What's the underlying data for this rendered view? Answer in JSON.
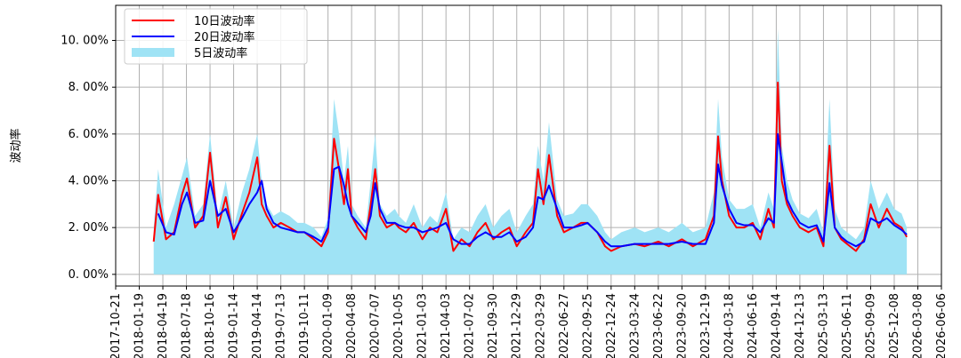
{
  "chart_data": {
    "type": "line",
    "title": "",
    "xlabel": "",
    "ylabel": "波动率",
    "ylim": [
      -0.005,
      0.115
    ],
    "grid": true,
    "legend_position": "top-left",
    "yticks": [
      0,
      0.02,
      0.04,
      0.06,
      0.08,
      0.1
    ],
    "ytick_labels": [
      "0. 00%",
      "2. 00%",
      "4. 00%",
      "6. 00%",
      "8. 00%",
      "10. 00%"
    ],
    "xticks": [
      "2017-10-21",
      "2018-01-19",
      "2018-04-19",
      "2018-07-18",
      "2018-10-16",
      "2019-01-14",
      "2019-04-14",
      "2019-07-13",
      "2019-10-11",
      "2020-01-09",
      "2020-04-08",
      "2020-07-07",
      "2020-10-05",
      "2021-01-03",
      "2021-04-03",
      "2021-07-02",
      "2021-09-30",
      "2021-12-29",
      "2022-03-29",
      "2022-06-27",
      "2022-09-25",
      "2022-12-24",
      "2023-03-24",
      "2023-06-22",
      "2023-09-20",
      "2023-12-19",
      "2024-03-18",
      "2024-06-16",
      "2024-09-14",
      "2024-12-13",
      "2025-03-13",
      "2025-06-11",
      "2025-09-09",
      "2025-12-08",
      "2026-03-08",
      "2026-06-06"
    ],
    "xlim": [
      "2017-10-21",
      "2026-06-06"
    ],
    "series": [
      {
        "name": "10日波动率",
        "color": "#ff0000",
        "kind": "line",
        "x": [
          "2018-03-15",
          "2018-04-01",
          "2018-05-01",
          "2018-06-01",
          "2018-07-01",
          "2018-07-20",
          "2018-08-20",
          "2018-09-20",
          "2018-10-16",
          "2018-11-15",
          "2018-12-15",
          "2019-01-14",
          "2019-02-15",
          "2019-03-15",
          "2019-04-14",
          "2019-05-01",
          "2019-05-20",
          "2019-06-15",
          "2019-07-13",
          "2019-08-15",
          "2019-09-15",
          "2019-10-11",
          "2019-11-15",
          "2019-12-15",
          "2020-01-09",
          "2020-02-01",
          "2020-02-20",
          "2020-03-10",
          "2020-03-25",
          "2020-04-08",
          "2020-05-01",
          "2020-06-01",
          "2020-06-20",
          "2020-07-07",
          "2020-07-25",
          "2020-08-20",
          "2020-09-20",
          "2020-10-05",
          "2020-11-01",
          "2020-12-01",
          "2021-01-03",
          "2021-02-01",
          "2021-03-01",
          "2021-04-03",
          "2021-05-01",
          "2021-06-01",
          "2021-07-02",
          "2021-08-01",
          "2021-09-01",
          "2021-09-30",
          "2021-11-01",
          "2021-12-01",
          "2021-12-29",
          "2022-02-01",
          "2022-03-01",
          "2022-03-20",
          "2022-04-10",
          "2022-05-01",
          "2022-06-01",
          "2022-06-27",
          "2022-08-01",
          "2022-09-01",
          "2022-09-25",
          "2022-11-01",
          "2022-12-01",
          "2022-12-24",
          "2023-02-01",
          "2023-03-24",
          "2023-05-01",
          "2023-06-22",
          "2023-08-01",
          "2023-09-20",
          "2023-11-01",
          "2023-12-19",
          "2024-01-20",
          "2024-02-05",
          "2024-02-20",
          "2024-03-18",
          "2024-04-15",
          "2024-05-15",
          "2024-06-16",
          "2024-07-15",
          "2024-08-15",
          "2024-09-05",
          "2024-09-20",
          "2024-10-05",
          "2024-10-25",
          "2024-11-15",
          "2024-12-13",
          "2025-01-15",
          "2025-02-15",
          "2025-03-13",
          "2025-04-05",
          "2025-04-25",
          "2025-05-20",
          "2025-06-11",
          "2025-07-15",
          "2025-08-15",
          "2025-09-09",
          "2025-10-10",
          "2025-11-10",
          "2025-12-08",
          "2026-01-05",
          "2026-01-25"
        ],
        "values": [
          0.014,
          0.034,
          0.015,
          0.018,
          0.034,
          0.041,
          0.02,
          0.025,
          0.052,
          0.02,
          0.033,
          0.015,
          0.026,
          0.035,
          0.05,
          0.03,
          0.025,
          0.02,
          0.022,
          0.02,
          0.018,
          0.018,
          0.015,
          0.012,
          0.018,
          0.058,
          0.045,
          0.03,
          0.045,
          0.025,
          0.02,
          0.015,
          0.03,
          0.045,
          0.025,
          0.02,
          0.022,
          0.02,
          0.018,
          0.022,
          0.015,
          0.02,
          0.018,
          0.028,
          0.01,
          0.015,
          0.012,
          0.018,
          0.022,
          0.015,
          0.018,
          0.02,
          0.012,
          0.018,
          0.022,
          0.045,
          0.03,
          0.051,
          0.025,
          0.018,
          0.02,
          0.022,
          0.022,
          0.018,
          0.012,
          0.01,
          0.012,
          0.013,
          0.012,
          0.014,
          0.012,
          0.015,
          0.012,
          0.015,
          0.025,
          0.059,
          0.04,
          0.025,
          0.02,
          0.02,
          0.022,
          0.015,
          0.028,
          0.02,
          0.082,
          0.04,
          0.03,
          0.025,
          0.02,
          0.018,
          0.02,
          0.012,
          0.055,
          0.02,
          0.015,
          0.013,
          0.01,
          0.015,
          0.03,
          0.02,
          0.028,
          0.022,
          0.02,
          0.016
        ]
      },
      {
        "name": "20日波动率",
        "color": "#0000ff",
        "kind": "line",
        "x": [
          "2018-04-01",
          "2018-05-01",
          "2018-06-01",
          "2018-07-01",
          "2018-07-20",
          "2018-08-20",
          "2018-09-20",
          "2018-10-16",
          "2018-11-15",
          "2018-12-15",
          "2019-01-14",
          "2019-02-15",
          "2019-03-15",
          "2019-04-14",
          "2019-05-01",
          "2019-05-20",
          "2019-06-15",
          "2019-07-13",
          "2019-08-15",
          "2019-09-15",
          "2019-10-11",
          "2019-11-15",
          "2019-12-15",
          "2020-01-09",
          "2020-02-01",
          "2020-02-20",
          "2020-03-10",
          "2020-03-25",
          "2020-04-08",
          "2020-05-01",
          "2020-06-01",
          "2020-06-20",
          "2020-07-07",
          "2020-07-25",
          "2020-08-20",
          "2020-09-20",
          "2020-10-05",
          "2020-11-01",
          "2020-12-01",
          "2021-01-03",
          "2021-02-01",
          "2021-03-01",
          "2021-04-03",
          "2021-05-01",
          "2021-06-01",
          "2021-07-02",
          "2021-08-01",
          "2021-09-01",
          "2021-09-30",
          "2021-11-01",
          "2021-12-01",
          "2021-12-29",
          "2022-02-01",
          "2022-03-01",
          "2022-03-20",
          "2022-04-10",
          "2022-05-01",
          "2022-06-01",
          "2022-06-27",
          "2022-08-01",
          "2022-09-01",
          "2022-09-25",
          "2022-11-01",
          "2022-12-01",
          "2022-12-24",
          "2023-02-01",
          "2023-03-24",
          "2023-05-01",
          "2023-06-22",
          "2023-08-01",
          "2023-09-20",
          "2023-11-01",
          "2023-12-19",
          "2024-01-20",
          "2024-02-05",
          "2024-02-20",
          "2024-03-18",
          "2024-04-15",
          "2024-05-15",
          "2024-06-16",
          "2024-07-15",
          "2024-08-15",
          "2024-09-05",
          "2024-09-20",
          "2024-10-05",
          "2024-10-25",
          "2024-11-15",
          "2024-12-13",
          "2025-01-15",
          "2025-02-15",
          "2025-03-13",
          "2025-04-05",
          "2025-04-25",
          "2025-05-20",
          "2025-06-11",
          "2025-07-15",
          "2025-08-15",
          "2025-09-09",
          "2025-10-10",
          "2025-11-10",
          "2025-12-08",
          "2026-01-05",
          "2026-01-25"
        ],
        "values": [
          0.026,
          0.018,
          0.017,
          0.03,
          0.035,
          0.022,
          0.023,
          0.04,
          0.025,
          0.028,
          0.018,
          0.024,
          0.03,
          0.035,
          0.04,
          0.028,
          0.022,
          0.02,
          0.019,
          0.018,
          0.018,
          0.016,
          0.014,
          0.02,
          0.045,
          0.046,
          0.038,
          0.03,
          0.025,
          0.022,
          0.018,
          0.025,
          0.039,
          0.028,
          0.022,
          0.022,
          0.021,
          0.02,
          0.02,
          0.018,
          0.019,
          0.02,
          0.022,
          0.015,
          0.013,
          0.013,
          0.016,
          0.018,
          0.016,
          0.016,
          0.018,
          0.014,
          0.016,
          0.02,
          0.033,
          0.032,
          0.038,
          0.028,
          0.02,
          0.02,
          0.021,
          0.022,
          0.018,
          0.014,
          0.012,
          0.012,
          0.013,
          0.013,
          0.013,
          0.013,
          0.014,
          0.013,
          0.013,
          0.022,
          0.047,
          0.038,
          0.028,
          0.022,
          0.021,
          0.021,
          0.018,
          0.024,
          0.022,
          0.06,
          0.048,
          0.032,
          0.027,
          0.022,
          0.02,
          0.021,
          0.014,
          0.039,
          0.02,
          0.016,
          0.014,
          0.012,
          0.014,
          0.024,
          0.022,
          0.024,
          0.021,
          0.019,
          0.017
        ]
      },
      {
        "name": "5日波动率",
        "color": "#9fe3f5",
        "kind": "area",
        "x": [
          "2018-03-15",
          "2018-04-01",
          "2018-05-01",
          "2018-06-01",
          "2018-07-01",
          "2018-07-20",
          "2018-08-20",
          "2018-09-20",
          "2018-10-16",
          "2018-11-15",
          "2018-12-15",
          "2019-01-14",
          "2019-02-15",
          "2019-03-15",
          "2019-04-14",
          "2019-05-01",
          "2019-05-20",
          "2019-06-15",
          "2019-07-13",
          "2019-08-15",
          "2019-09-15",
          "2019-10-11",
          "2019-11-15",
          "2019-12-15",
          "2020-01-09",
          "2020-02-01",
          "2020-02-20",
          "2020-03-10",
          "2020-03-25",
          "2020-04-08",
          "2020-05-01",
          "2020-06-01",
          "2020-06-20",
          "2020-07-07",
          "2020-07-25",
          "2020-08-20",
          "2020-09-20",
          "2020-10-05",
          "2020-11-01",
          "2020-12-01",
          "2021-01-03",
          "2021-02-01",
          "2021-03-01",
          "2021-04-03",
          "2021-05-01",
          "2021-06-01",
          "2021-07-02",
          "2021-08-01",
          "2021-09-01",
          "2021-09-30",
          "2021-11-01",
          "2021-12-01",
          "2021-12-29",
          "2022-02-01",
          "2022-03-01",
          "2022-03-20",
          "2022-04-10",
          "2022-05-01",
          "2022-06-01",
          "2022-06-27",
          "2022-08-01",
          "2022-09-01",
          "2022-09-25",
          "2022-11-01",
          "2022-12-01",
          "2022-12-24",
          "2023-02-01",
          "2023-03-24",
          "2023-05-01",
          "2023-06-22",
          "2023-08-01",
          "2023-09-20",
          "2023-11-01",
          "2023-12-19",
          "2024-01-20",
          "2024-02-05",
          "2024-02-20",
          "2024-03-18",
          "2024-04-15",
          "2024-05-15",
          "2024-06-16",
          "2024-07-15",
          "2024-08-15",
          "2024-09-05",
          "2024-09-20",
          "2024-10-05",
          "2024-10-25",
          "2024-11-15",
          "2024-12-13",
          "2025-01-15",
          "2025-02-15",
          "2025-03-13",
          "2025-04-05",
          "2025-04-25",
          "2025-05-20",
          "2025-06-11",
          "2025-07-15",
          "2025-08-15",
          "2025-09-09",
          "2025-10-10",
          "2025-11-10",
          "2025-12-08",
          "2026-01-05",
          "2026-01-25"
        ],
        "values": [
          0.02,
          0.045,
          0.02,
          0.03,
          0.042,
          0.05,
          0.025,
          0.03,
          0.06,
          0.025,
          0.04,
          0.02,
          0.035,
          0.045,
          0.06,
          0.04,
          0.03,
          0.025,
          0.027,
          0.025,
          0.022,
          0.022,
          0.02,
          0.016,
          0.024,
          0.075,
          0.06,
          0.04,
          0.055,
          0.03,
          0.025,
          0.02,
          0.04,
          0.06,
          0.03,
          0.025,
          0.028,
          0.025,
          0.022,
          0.03,
          0.02,
          0.025,
          0.022,
          0.035,
          0.015,
          0.02,
          0.018,
          0.025,
          0.03,
          0.02,
          0.025,
          0.028,
          0.018,
          0.025,
          0.03,
          0.055,
          0.04,
          0.065,
          0.032,
          0.025,
          0.026,
          0.03,
          0.03,
          0.025,
          0.018,
          0.015,
          0.018,
          0.02,
          0.018,
          0.02,
          0.018,
          0.022,
          0.018,
          0.02,
          0.035,
          0.075,
          0.05,
          0.032,
          0.028,
          0.028,
          0.03,
          0.02,
          0.035,
          0.028,
          0.105,
          0.055,
          0.04,
          0.032,
          0.026,
          0.024,
          0.028,
          0.018,
          0.075,
          0.028,
          0.02,
          0.018,
          0.015,
          0.02,
          0.04,
          0.028,
          0.035,
          0.028,
          0.026,
          0.02
        ]
      }
    ]
  }
}
